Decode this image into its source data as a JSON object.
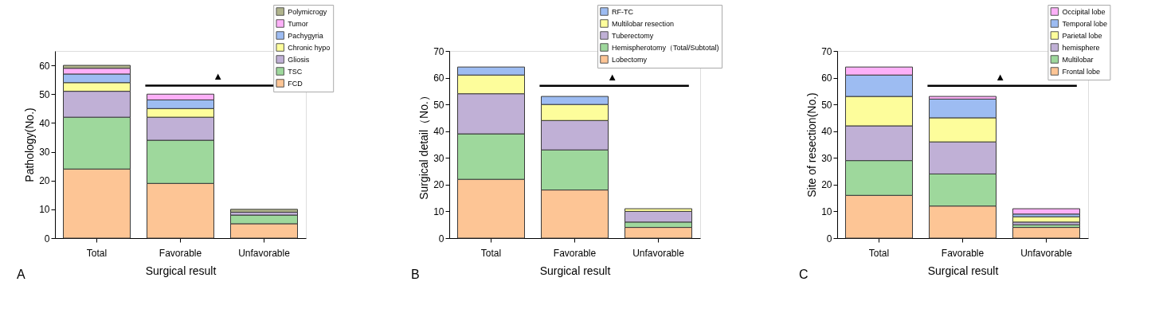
{
  "chart_data": [
    {
      "type": "bar",
      "stacked": true,
      "xlabel": "Surgical result",
      "ylabel": "Pathology(No.)",
      "categories": [
        "Total",
        "Favorable",
        "Unfavorable"
      ],
      "ylim": [
        0,
        65
      ],
      "yticks": [
        0,
        10,
        20,
        30,
        40,
        50,
        60
      ],
      "grid": false,
      "legend": "top right",
      "annotations": [
        "A"
      ],
      "ref_lines": [
        {
          "axis": "y",
          "value": 53,
          "label": "▲",
          "color": "#000000"
        }
      ],
      "series": [
        {
          "name": "FCD",
          "color": "#fdc595",
          "values": [
            24,
            19,
            5
          ]
        },
        {
          "name": "TSC",
          "color": "#9ed89c",
          "values": [
            18,
            15,
            3
          ]
        },
        {
          "name": "Gliosis",
          "color": "#c0b0d6",
          "values": [
            9,
            8,
            1
          ]
        },
        {
          "name": "Chronic hypo",
          "color": "#fdfd9b",
          "values": [
            3,
            3,
            0
          ]
        },
        {
          "name": "Pachygyria",
          "color": "#9dbcf2",
          "values": [
            3,
            3,
            0
          ]
        },
        {
          "name": "Tumor",
          "color": "#fdb0f8",
          "values": [
            2,
            2,
            0
          ]
        },
        {
          "name": "Polymicrogy",
          "color": "#b0b48c",
          "values": [
            1,
            0,
            1
          ]
        }
      ]
    },
    {
      "type": "bar",
      "stacked": true,
      "xlabel": "Surgical result",
      "ylabel": "Surgical detail（No.）",
      "categories": [
        "Total",
        "Favorable",
        "Unfavorable"
      ],
      "ylim": [
        0,
        70
      ],
      "yticks": [
        0,
        10,
        20,
        30,
        40,
        50,
        60,
        70
      ],
      "grid": false,
      "legend": "top right",
      "annotations": [
        "B"
      ],
      "ref_lines": [
        {
          "axis": "y",
          "value": 57,
          "label": "▲",
          "color": "#000000"
        }
      ],
      "series": [
        {
          "name": "Lobectomy",
          "color": "#fdc595",
          "values": [
            22,
            18,
            4
          ]
        },
        {
          "name": "Hemispherotomy（Total/Subtotal)",
          "color": "#9ed89c",
          "values": [
            17,
            15,
            2
          ]
        },
        {
          "name": "Tuberectomy",
          "color": "#c0b0d6",
          "values": [
            15,
            11,
            4
          ]
        },
        {
          "name": "Multilobar resection",
          "color": "#fdfd9b",
          "values": [
            7,
            6,
            1
          ]
        },
        {
          "name": "RF-TC",
          "color": "#9dbcf2",
          "values": [
            3,
            3,
            0
          ]
        }
      ]
    },
    {
      "type": "bar",
      "stacked": true,
      "xlabel": "Surgical result",
      "ylabel": "Site of resection(No.)",
      "categories": [
        "Total",
        "Favorable",
        "Unfavorable"
      ],
      "ylim": [
        0,
        70
      ],
      "yticks": [
        0,
        10,
        20,
        30,
        40,
        50,
        60,
        70
      ],
      "grid": false,
      "legend": "top right",
      "annotations": [
        "C"
      ],
      "ref_lines": [
        {
          "axis": "y",
          "value": 57,
          "label": "▲",
          "color": "#000000"
        }
      ],
      "series": [
        {
          "name": "Frontal lobe",
          "color": "#fdc595",
          "values": [
            16,
            12,
            4
          ]
        },
        {
          "name": "Multilobar",
          "color": "#9ed89c",
          "values": [
            13,
            12,
            1
          ]
        },
        {
          "name": "hemisphere",
          "color": "#c0b0d6",
          "values": [
            13,
            12,
            1
          ]
        },
        {
          "name": "Parietal lobe",
          "color": "#fdfd9b",
          "values": [
            11,
            9,
            2
          ]
        },
        {
          "name": "Temporal lobe",
          "color": "#9dbcf2",
          "values": [
            8,
            7,
            1
          ]
        },
        {
          "name": "Occipital lobe",
          "color": "#fdb0f8",
          "values": [
            3,
            1,
            2
          ]
        }
      ]
    }
  ]
}
